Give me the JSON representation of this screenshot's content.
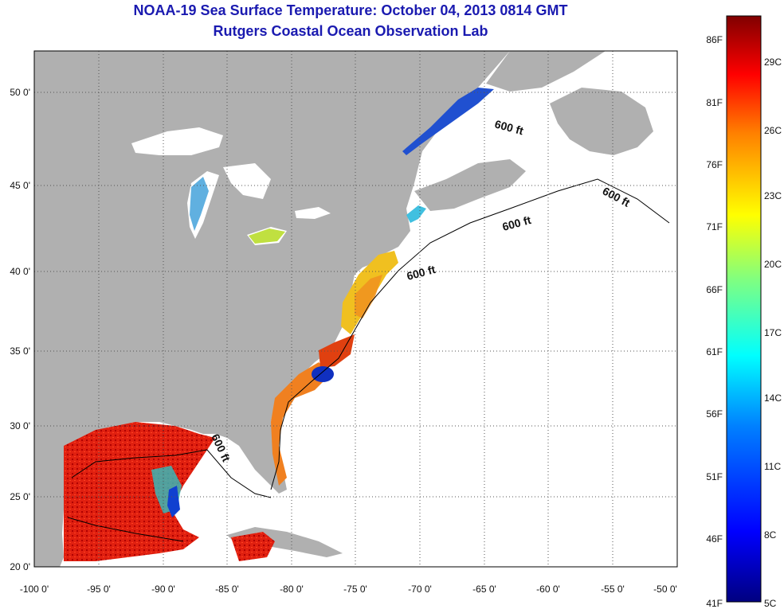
{
  "header": {
    "title": "NOAA-19 Sea Surface Temperature:  October 04, 2013 0814 GMT",
    "subtitle": "Rutgers Coastal Ocean Observation Lab"
  },
  "map": {
    "lon_range": [
      -100,
      -50
    ],
    "lat_range": [
      20,
      52.5
    ],
    "lon_ticks": [
      "-100 0'",
      "-95 0'",
      "-90 0'",
      "-85 0'",
      "-80 0'",
      "-75 0'",
      "-70 0'",
      "-65 0'",
      "-60 0'",
      "-55 0'",
      "-50 0'"
    ],
    "lat_ticks": [
      "20 0'",
      "25 0'",
      "30 0'",
      "35 0'",
      "40 0'",
      "45 0'",
      "50 0'"
    ],
    "isobath_label": "600 ft",
    "colors": {
      "land": "#b0b0b0",
      "ocean": "#ffffff",
      "grid": "#555555"
    }
  },
  "colorbar": {
    "fahrenheit_labels": [
      "86F",
      "81F",
      "76F",
      "71F",
      "66F",
      "61F",
      "56F",
      "51F",
      "46F",
      "41F"
    ],
    "celsius_labels": [
      "29C",
      "26C",
      "23C",
      "20C",
      "17C",
      "14C",
      "11C",
      "8C",
      "5C"
    ],
    "colors": [
      "#800000",
      "#ff0000",
      "#ff8000",
      "#ffff00",
      "#80ff80",
      "#00ffff",
      "#0080ff",
      "#0000ff",
      "#000080"
    ]
  }
}
